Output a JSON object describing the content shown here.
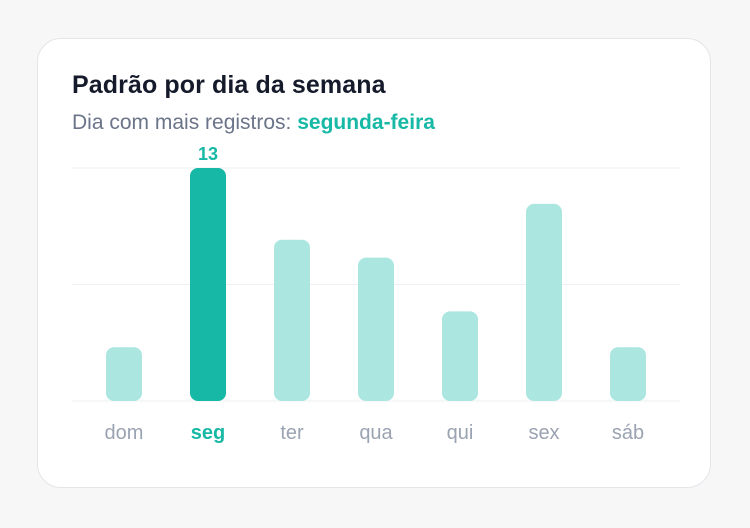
{
  "card": {
    "title": "Padrão por dia da semana",
    "subtitle_prefix": "Dia com mais registros: ",
    "subtitle_highlight": "segunda-feira"
  },
  "colors": {
    "accent": "#17b8a5",
    "bar_muted": "#ace6e0",
    "axis_label": "#9aa3b2",
    "grid": "#eef0f3"
  },
  "chart_data": {
    "type": "bar",
    "title": "Padrão por dia da semana",
    "subtitle": "Dia com mais registros: segunda-feira",
    "categories": [
      "dom",
      "seg",
      "ter",
      "qua",
      "qui",
      "sex",
      "sáb"
    ],
    "values": [
      3,
      13,
      9,
      8,
      5,
      11,
      3
    ],
    "highlight_index": 1,
    "highlight_label": "13",
    "ylim": [
      0,
      13
    ],
    "grid": true,
    "legend": "none"
  }
}
